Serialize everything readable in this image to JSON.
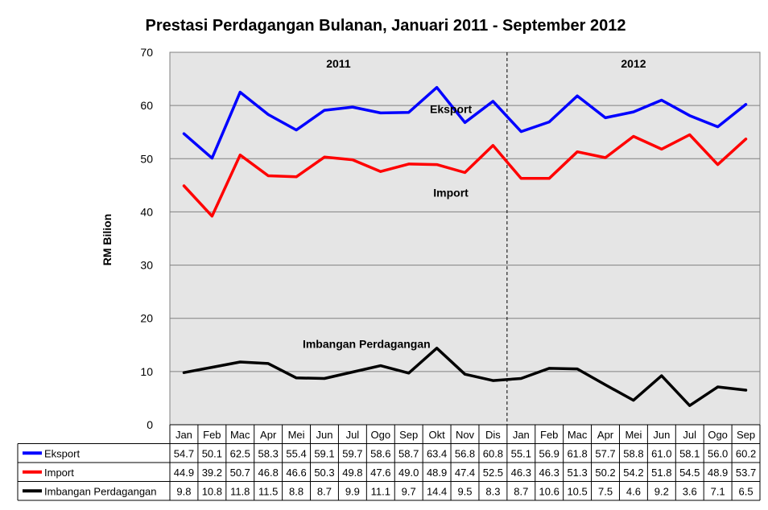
{
  "chart_data": {
    "type": "line",
    "title": "Prestasi Perdagangan Bulanan, Januari 2011 - September 2012",
    "ylabel": "RM Bilion",
    "xlabel": "",
    "ylim": [
      0,
      70
    ],
    "yticks": [
      0,
      10,
      20,
      30,
      40,
      50,
      60,
      70
    ],
    "grid": true,
    "categories": [
      "Jan",
      "Feb",
      "Mac",
      "Apr",
      "Mei",
      "Jun",
      "Jul",
      "Ogo",
      "Sep",
      "Okt",
      "Nov",
      "Dis",
      "Jan",
      "Feb",
      "Mac",
      "Apr",
      "Mei",
      "Jun",
      "Jul",
      "Ogo",
      "Sep"
    ],
    "periods": [
      {
        "label": "2011",
        "start": 0,
        "end": 11
      },
      {
        "label": "2012",
        "start": 12,
        "end": 20
      }
    ],
    "series": [
      {
        "name": "Eksport",
        "color": "#0000ff",
        "annotation": "Eksport",
        "values": [
          54.7,
          50.1,
          62.5,
          58.3,
          55.4,
          59.1,
          59.7,
          58.6,
          58.7,
          63.4,
          56.8,
          60.8,
          55.1,
          56.9,
          61.8,
          57.7,
          58.8,
          61.0,
          58.1,
          56.0,
          60.2
        ]
      },
      {
        "name": "Import",
        "color": "#ff0000",
        "annotation": "Import",
        "values": [
          44.9,
          39.2,
          50.7,
          46.8,
          46.6,
          50.3,
          49.8,
          47.6,
          49.0,
          48.9,
          47.4,
          52.5,
          46.3,
          46.3,
          51.3,
          50.2,
          54.2,
          51.8,
          54.5,
          48.9,
          53.7
        ]
      },
      {
        "name": "Imbangan Perdagangan",
        "color": "#000000",
        "annotation": "Imbangan Perdagangan",
        "values": [
          9.8,
          10.8,
          11.8,
          11.5,
          8.8,
          8.7,
          9.9,
          11.1,
          9.7,
          14.4,
          9.5,
          8.3,
          8.7,
          10.6,
          10.5,
          7.5,
          4.6,
          9.2,
          3.6,
          7.1,
          6.5
        ]
      }
    ],
    "table_display": [
      [
        "54.7",
        "50.1",
        "62.5",
        "58.3",
        "55.4",
        "59.1",
        "59.7",
        "58.6",
        "58.7",
        "63.4",
        "56.8",
        "60.8",
        "55.1",
        "56.9",
        "61.8",
        "57.7",
        "58.8",
        "61.0",
        "58.1",
        "56.0",
        "60.2"
      ],
      [
        "44.9",
        "39.2",
        "50.7",
        "46.8",
        "46.6",
        "50.3",
        "49.8",
        "47.6",
        "49.0",
        "48.9",
        "47.4",
        "52.5",
        "46.3",
        "46.3",
        "51.3",
        "50.2",
        "54.2",
        "51.8",
        "54.5",
        "48.9",
        "53.7"
      ],
      [
        "9.8",
        "10.8",
        "11.8",
        "11.5",
        "8.8",
        "8.7",
        "9.9",
        "11.1",
        "9.7",
        "14.4",
        "9.5",
        "8.3",
        "8.7",
        "10.6",
        "10.5",
        "7.5",
        "4.6",
        "9.2",
        "3.6",
        "7.1",
        "6.5"
      ]
    ],
    "colors": {
      "plot_background": "#e5e5e5",
      "grid": "#808080"
    }
  }
}
